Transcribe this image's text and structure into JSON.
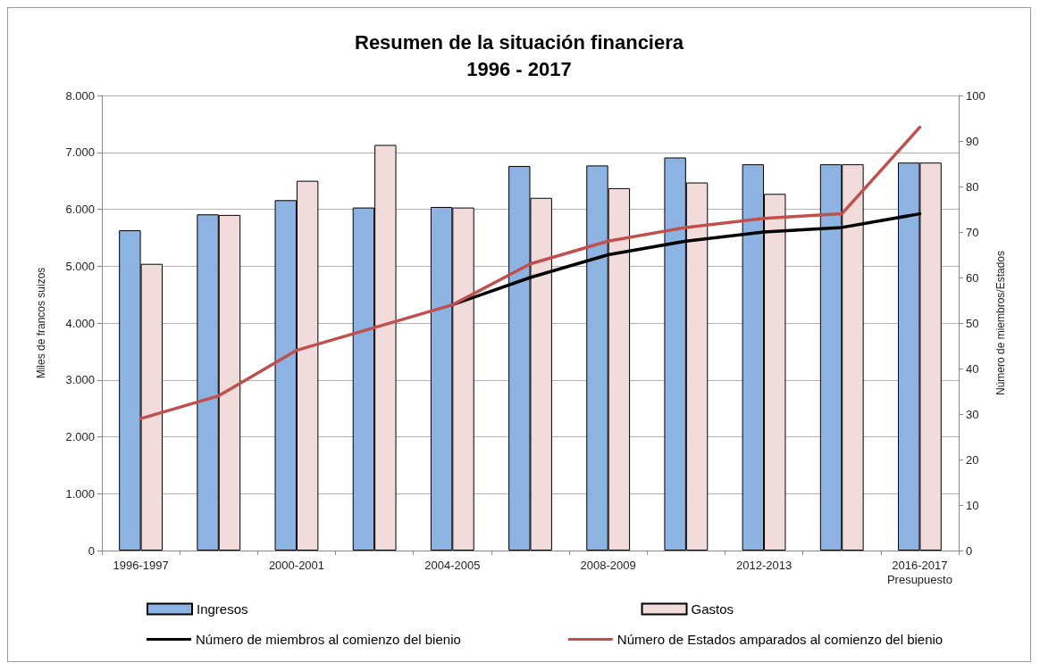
{
  "chart_data": {
    "type": "bar",
    "title": "Resumen de la situación financiera\n1996 - 2017",
    "categories": [
      "1996-1997",
      null,
      "2000-2001",
      null,
      "2004-2005",
      null,
      "2008-2009",
      null,
      "2012-2013",
      null,
      "2016-2017\nPresupuesto"
    ],
    "series": [
      {
        "name": "Ingresos",
        "color": "#8db3e2",
        "values": [
          5630,
          5910,
          6160,
          6030,
          6040,
          6760,
          6770,
          6910,
          6790,
          6790,
          6820
        ]
      },
      {
        "name": "Gastos",
        "color": "#f2dcdb",
        "values": [
          5040,
          5900,
          6500,
          7130,
          6030,
          6200,
          6370,
          6470,
          6270,
          6790,
          6820
        ]
      },
      {
        "name": "Número de miembros al comienzo del bienio",
        "type": "line",
        "axis": "y2",
        "color": "#000000",
        "values": [
          null,
          null,
          null,
          null,
          54,
          60,
          65,
          68,
          70,
          71,
          74
        ]
      },
      {
        "name": "Número de Estados amparados al comienzo del bienio",
        "type": "line",
        "axis": "y2",
        "color": "#c0504d",
        "values": [
          29,
          34,
          44,
          49,
          54,
          63,
          68,
          71,
          73,
          74,
          93
        ]
      }
    ],
    "ylabel": "Miles de francos suizos",
    "y2label": "Número de miembros/Estados",
    "ylim": [
      0,
      8000
    ],
    "yticks": [
      {
        "value": 0,
        "label": "0"
      },
      {
        "value": 1000,
        "label": "1.000"
      },
      {
        "value": 2000,
        "label": "2.000"
      },
      {
        "value": 3000,
        "label": "3.000"
      },
      {
        "value": 4000,
        "label": "4.000"
      },
      {
        "value": 5000,
        "label": "5.000"
      },
      {
        "value": 6000,
        "label": "6.000"
      },
      {
        "value": 7000,
        "label": "7.000"
      },
      {
        "value": 8000,
        "label": "8.000"
      }
    ],
    "y2lim": [
      0,
      100
    ],
    "y2ticks": [
      0,
      10,
      20,
      30,
      40,
      50,
      60,
      70,
      80,
      90,
      100
    ],
    "grid": "y",
    "legend": "bottom",
    "marker": "none",
    "line_style": "solid"
  }
}
